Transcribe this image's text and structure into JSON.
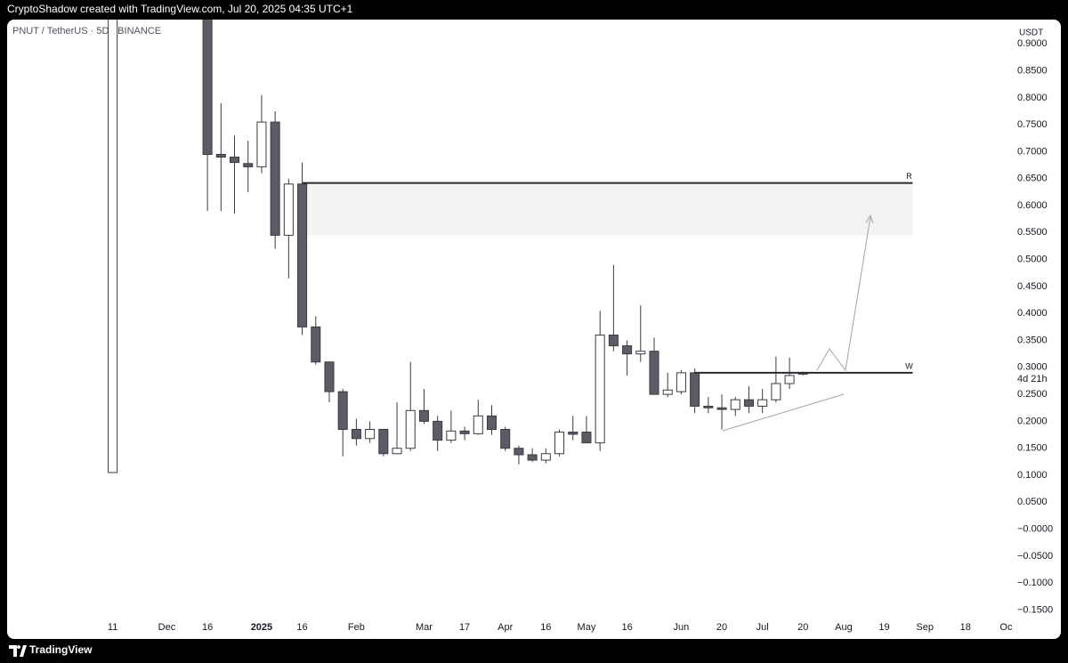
{
  "header": {
    "text": "CryptoShadow created with TradingView.com, Jul 20, 2025 04:35 UTC+1"
  },
  "footer": {
    "brand": "TradingView"
  },
  "chart_data": {
    "type": "candlestick",
    "title": "PNUT / TetherUS · 5D · BINANCE",
    "y_unit": "USDT",
    "countdown": "4d 21h",
    "up_color": "#ffffff",
    "down_color": "#5b5c66",
    "border_color": "#3a3b42",
    "x": [
      0,
      7,
      8,
      9,
      10,
      11,
      12,
      13,
      14,
      15,
      16,
      17,
      18,
      19,
      20,
      21,
      22,
      23,
      24,
      25,
      26,
      27,
      28,
      29,
      30,
      31,
      32,
      33,
      34,
      35,
      36,
      37,
      38,
      39,
      40,
      41,
      42,
      43,
      44,
      45,
      46,
      47,
      48,
      49,
      50,
      51
    ],
    "open": [
      0.105,
      1.0,
      0.695,
      0.69,
      0.678,
      0.672,
      0.755,
      0.545,
      0.64,
      0.375,
      0.31,
      0.255,
      0.185,
      0.168,
      0.185,
      0.14,
      0.15,
      0.22,
      0.2,
      0.165,
      0.182,
      0.177,
      0.21,
      0.185,
      0.15,
      0.138,
      0.128,
      0.14,
      0.18,
      0.18,
      0.16,
      0.36,
      0.34,
      0.325,
      0.33,
      0.25,
      0.255,
      0.29,
      0.228,
      0.225,
      0.222,
      0.24,
      0.228,
      0.24,
      0.27,
      0.29
    ],
    "high": [
      1.1,
      1.0,
      0.79,
      0.73,
      0.72,
      0.805,
      0.775,
      0.65,
      0.68,
      0.395,
      0.31,
      0.26,
      0.205,
      0.2,
      0.185,
      0.235,
      0.31,
      0.26,
      0.21,
      0.22,
      0.19,
      0.24,
      0.23,
      0.19,
      0.155,
      0.15,
      0.15,
      0.185,
      0.21,
      0.21,
      0.405,
      0.49,
      0.35,
      0.415,
      0.355,
      0.29,
      0.295,
      0.298,
      0.245,
      0.25,
      0.245,
      0.265,
      0.26,
      0.32,
      0.318,
      0.292
    ],
    "low": [
      0.105,
      0.59,
      0.59,
      0.585,
      0.625,
      0.66,
      0.52,
      0.465,
      0.36,
      0.305,
      0.235,
      0.135,
      0.155,
      0.16,
      0.135,
      0.14,
      0.145,
      0.195,
      0.145,
      0.16,
      0.165,
      0.175,
      0.175,
      0.145,
      0.12,
      0.125,
      0.122,
      0.135,
      0.165,
      0.165,
      0.145,
      0.33,
      0.285,
      0.31,
      0.25,
      0.245,
      0.25,
      0.215,
      0.215,
      0.185,
      0.21,
      0.215,
      0.215,
      0.235,
      0.26,
      0.285
    ],
    "close": [
      1.1,
      0.695,
      0.69,
      0.68,
      0.672,
      0.755,
      0.545,
      0.64,
      0.375,
      0.31,
      0.255,
      0.185,
      0.168,
      0.185,
      0.14,
      0.15,
      0.22,
      0.2,
      0.165,
      0.182,
      0.177,
      0.21,
      0.185,
      0.15,
      0.138,
      0.128,
      0.14,
      0.18,
      0.176,
      0.16,
      0.36,
      0.34,
      0.325,
      0.33,
      0.25,
      0.258,
      0.29,
      0.228,
      0.225,
      0.222,
      0.24,
      0.228,
      0.24,
      0.27,
      0.285,
      0.288
    ],
    "xlim": [
      -7.8,
      66.3
    ],
    "ylim": [
      -0.169,
      0.945
    ],
    "xticks": [
      {
        "value": 0,
        "label": "11"
      },
      {
        "value": 4,
        "label": "Dec"
      },
      {
        "value": 7,
        "label": "16"
      },
      {
        "value": 11,
        "label": "2025",
        "bold": true
      },
      {
        "value": 14,
        "label": "16"
      },
      {
        "value": 18,
        "label": "Feb"
      },
      {
        "value": 23,
        "label": "Mar"
      },
      {
        "value": 26,
        "label": "17"
      },
      {
        "value": 29,
        "label": "Apr"
      },
      {
        "value": 32,
        "label": "16"
      },
      {
        "value": 35,
        "label": "May"
      },
      {
        "value": 38,
        "label": "16"
      },
      {
        "value": 42,
        "label": "Jun"
      },
      {
        "value": 45,
        "label": "20"
      },
      {
        "value": 48,
        "label": "Jul"
      },
      {
        "value": 51,
        "label": "20"
      },
      {
        "value": 54,
        "label": "Aug"
      },
      {
        "value": 57,
        "label": "19"
      },
      {
        "value": 60,
        "label": "Sep"
      },
      {
        "value": 63,
        "label": "18"
      },
      {
        "value": 66,
        "label": "Oc"
      }
    ],
    "yticks": [
      {
        "value": 0.9,
        "label": "0.9000"
      },
      {
        "value": 0.85,
        "label": "0.8500"
      },
      {
        "value": 0.8,
        "label": "0.8000"
      },
      {
        "value": 0.75,
        "label": "0.7500"
      },
      {
        "value": 0.7,
        "label": "0.7000"
      },
      {
        "value": 0.65,
        "label": "0.6500"
      },
      {
        "value": 0.6,
        "label": "0.6000"
      },
      {
        "value": 0.55,
        "label": "0.5500"
      },
      {
        "value": 0.5,
        "label": "0.5000"
      },
      {
        "value": 0.45,
        "label": "0.4500"
      },
      {
        "value": 0.4,
        "label": "0.4000"
      },
      {
        "value": 0.35,
        "label": "0.3500"
      },
      {
        "value": 0.3,
        "label": "0.3000"
      },
      {
        "value": 0.25,
        "label": "0.2500"
      },
      {
        "value": 0.2,
        "label": "0.2000"
      },
      {
        "value": 0.15,
        "label": "0.1500"
      },
      {
        "value": 0.1,
        "label": "0.1000"
      },
      {
        "value": 0.05,
        "label": "0.0500"
      },
      {
        "value": 0,
        "label": "−0.0000"
      },
      {
        "value": -0.05,
        "label": "−0.0500"
      },
      {
        "value": -0.1,
        "label": "−0.1000"
      },
      {
        "value": -0.15,
        "label": "−0.1500"
      }
    ],
    "zone": {
      "from": 14,
      "to": 59.1,
      "low": 0.545,
      "high": 0.642
    },
    "levels": [
      {
        "label": "R",
        "value": 0.642,
        "from": 14,
        "to": 59.1
      },
      {
        "label": "W",
        "value": 0.29,
        "from": 43,
        "to": 59.1
      }
    ]
  }
}
